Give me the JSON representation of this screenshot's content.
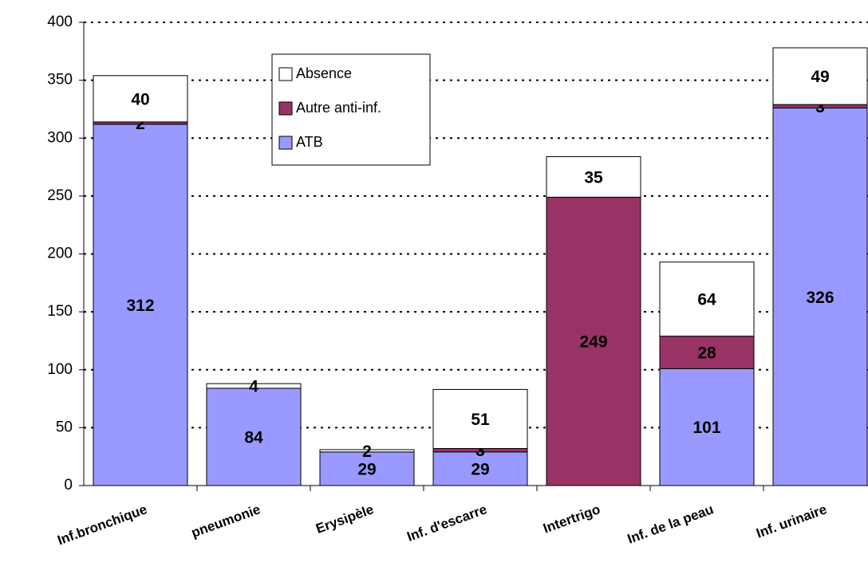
{
  "chart_data": {
    "type": "stacked-bar",
    "categories": [
      "Inf.bronchique",
      "pneumonie",
      "Erysipèle",
      "Inf. d'escarre",
      "Intertrigo",
      "Inf. de la peau",
      "Inf. urinaire"
    ],
    "series": [
      {
        "name": "ATB",
        "color": "#9999ff",
        "values": [
          312,
          84,
          29,
          29,
          null,
          101,
          326
        ]
      },
      {
        "name": "Autre anti-inf.",
        "color": "#993366",
        "values": [
          2,
          null,
          null,
          3,
          249,
          28,
          3
        ]
      },
      {
        "name": "Absence",
        "color": "#ffffff",
        "values": [
          40,
          4,
          2,
          51,
          35,
          64,
          49
        ]
      }
    ],
    "ylim": [
      0,
      400
    ],
    "yticks": [
      0,
      50,
      100,
      150,
      200,
      250,
      300,
      350,
      400
    ],
    "grid": true
  }
}
